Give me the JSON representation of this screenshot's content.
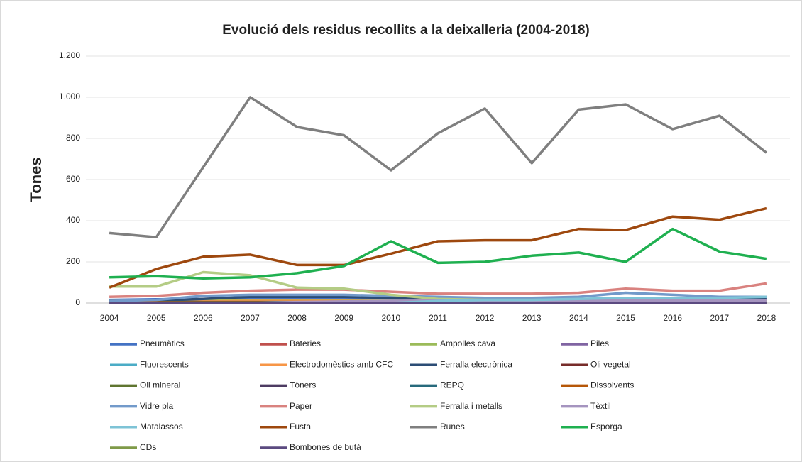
{
  "chart_data": {
    "type": "line",
    "title": "Evolució dels residus recollits a la deixalleria (2004-2018)",
    "y_label": "Tones",
    "categories": [
      "2004",
      "2005",
      "2006",
      "2007",
      "2008",
      "2009",
      "2010",
      "2011",
      "2012",
      "2013",
      "2014",
      "2015",
      "2016",
      "2017",
      "2018"
    ],
    "ylim": [
      0,
      1200
    ],
    "yticks": [
      0,
      200,
      400,
      600,
      800,
      {
        "value": 1000,
        "label": "1.000"
      },
      {
        "value": 1200,
        "label": "1.200"
      }
    ],
    "grid": true,
    "legend": "bottom",
    "series": [
      {
        "name": "Pneumàtics",
        "color": "#4472c4",
        "values": [
          15,
          18,
          20,
          22,
          25,
          25,
          22,
          20,
          18,
          18,
          20,
          22,
          20,
          18,
          15
        ]
      },
      {
        "name": "Bateries",
        "color": "#c0504d",
        "values": [
          5,
          5,
          6,
          6,
          7,
          7,
          6,
          6,
          5,
          5,
          6,
          6,
          6,
          5,
          5
        ]
      },
      {
        "name": "Ampolles cava",
        "color": "#9bbb59",
        "values": [
          10,
          10,
          12,
          12,
          12,
          12,
          10,
          10,
          10,
          10,
          10,
          10,
          10,
          10,
          10
        ]
      },
      {
        "name": "Piles",
        "color": "#8064a2",
        "values": [
          2,
          2,
          2,
          2,
          2,
          2,
          2,
          2,
          2,
          2,
          2,
          2,
          2,
          2,
          2
        ]
      },
      {
        "name": "Fluorescents",
        "color": "#4bacc6",
        "values": [
          1,
          1,
          1,
          1,
          1,
          1,
          1,
          1,
          1,
          1,
          1,
          1,
          1,
          1,
          1
        ]
      },
      {
        "name": "Electrodomèstics amb CFC",
        "color": "#f79646",
        "values": [
          5,
          6,
          8,
          10,
          10,
          10,
          10,
          9,
          9,
          8,
          8,
          9,
          9,
          8,
          8
        ]
      },
      {
        "name": "Ferralla electrònica",
        "color": "#2c4d75",
        "values": [
          10,
          12,
          20,
          30,
          30,
          30,
          25,
          20,
          20,
          18,
          18,
          20,
          20,
          18,
          18
        ]
      },
      {
        "name": "Oli vegetal",
        "color": "#772c2a",
        "values": [
          2,
          2,
          2,
          2,
          2,
          2,
          2,
          2,
          2,
          2,
          2,
          2,
          2,
          2,
          2
        ]
      },
      {
        "name": "Oli mineral",
        "color": "#5f7530",
        "values": [
          3,
          3,
          3,
          3,
          3,
          3,
          3,
          3,
          3,
          3,
          3,
          3,
          3,
          3,
          3
        ]
      },
      {
        "name": "Tòners",
        "color": "#4d3b62",
        "values": [
          1,
          1,
          1,
          1,
          1,
          1,
          1,
          1,
          1,
          1,
          1,
          1,
          1,
          1,
          1
        ]
      },
      {
        "name": "REPQ",
        "color": "#276a7c",
        "values": [
          5,
          5,
          5,
          5,
          5,
          5,
          5,
          5,
          5,
          5,
          5,
          5,
          5,
          5,
          5
        ]
      },
      {
        "name": "Dissolvents",
        "color": "#b65708",
        "values": [
          3,
          3,
          3,
          3,
          3,
          3,
          3,
          3,
          3,
          3,
          3,
          3,
          3,
          3,
          3
        ]
      },
      {
        "name": "Vidre pla",
        "color": "#729aca",
        "values": [
          10,
          15,
          35,
          40,
          40,
          40,
          35,
          30,
          25,
          25,
          30,
          50,
          40,
          30,
          30
        ]
      },
      {
        "name": "Paper",
        "color": "#d9827f",
        "values": [
          30,
          35,
          50,
          60,
          65,
          65,
          55,
          45,
          45,
          45,
          50,
          70,
          60,
          60,
          95
        ]
      },
      {
        "name": "Ferralla i metalls",
        "color": "#b4cc85",
        "values": [
          80,
          80,
          150,
          135,
          75,
          70,
          40,
          20,
          15,
          15,
          15,
          20,
          20,
          15,
          10
        ]
      },
      {
        "name": "Tèxtil",
        "color": "#a594bf",
        "values": [
          0,
          0,
          0,
          0,
          5,
          8,
          10,
          12,
          12,
          12,
          12,
          12,
          12,
          12,
          12
        ]
      },
      {
        "name": "Matalassos",
        "color": "#7ec3d6",
        "values": [
          0,
          0,
          0,
          0,
          0,
          0,
          0,
          10,
          15,
          15,
          20,
          25,
          25,
          25,
          30
        ]
      },
      {
        "name": "Fusta",
        "color": "#9e480e",
        "values": [
          75,
          165,
          225,
          235,
          185,
          185,
          240,
          300,
          305,
          305,
          360,
          355,
          420,
          405,
          460
        ]
      },
      {
        "name": "Runes",
        "color": "#7f7f7f",
        "values": [
          340,
          320,
          660,
          1000,
          855,
          815,
          645,
          825,
          945,
          680,
          940,
          965,
          845,
          910,
          730
        ]
      },
      {
        "name": "Esporga",
        "color": "#1fb050",
        "values": [
          125,
          130,
          120,
          125,
          145,
          180,
          300,
          195,
          200,
          230,
          245,
          200,
          360,
          250,
          215
        ]
      },
      {
        "name": "CDs",
        "color": "#7f9a48",
        "values": [
          0,
          0,
          0,
          0,
          0,
          0,
          0,
          0,
          0,
          0,
          0,
          0,
          0,
          0,
          0
        ]
      },
      {
        "name": "Bombones de butà",
        "color": "#5b4a80",
        "values": [
          0,
          0,
          0,
          0,
          0,
          0,
          0,
          0,
          0,
          0,
          0,
          0,
          0,
          0,
          0
        ]
      }
    ]
  }
}
